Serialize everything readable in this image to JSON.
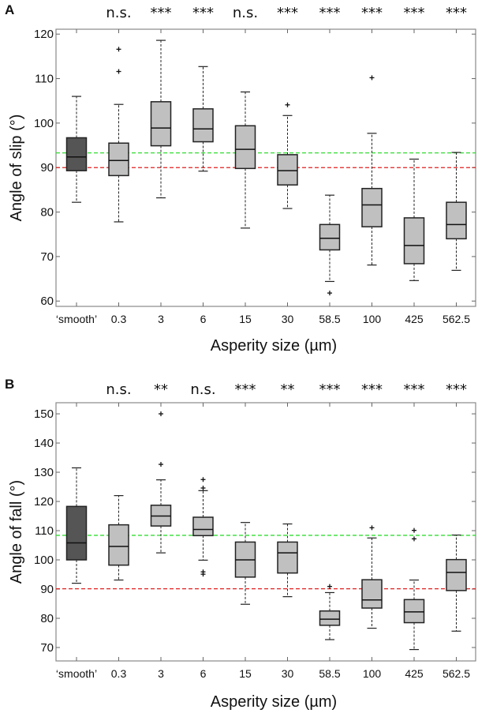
{
  "colors": {
    "smooth_box": "#555555",
    "box": "#c0c0c0",
    "edge": "#222222",
    "green_line": "#33dd33",
    "red_line": "#e02020",
    "frame": "#888888"
  },
  "chart_data": [
    {
      "type": "box",
      "panel_label": "A",
      "ylabel": "Angle of slip (°)",
      "xlabel": "Asperity size (µm)",
      "categories": [
        "‘smooth’",
        "0.3",
        "3",
        "6",
        "15",
        "30",
        "58.5",
        "100",
        "425",
        "562.5"
      ],
      "significance": [
        "",
        "n.s.",
        "***",
        "***",
        "n.s.",
        "***",
        "***",
        "***",
        "***",
        "***"
      ],
      "yticks": [
        60,
        70,
        80,
        90,
        100,
        110,
        120
      ],
      "ylim": [
        58.8,
        121.1
      ],
      "reference_lines": {
        "green": 93.3,
        "red": 90
      },
      "boxes": [
        {
          "whisker_low": 82.2,
          "q1": 89.3,
          "median": 92.4,
          "q3": 96.7,
          "whisker_high": 106.0,
          "outliers": []
        },
        {
          "whisker_low": 77.8,
          "q1": 88.2,
          "median": 91.6,
          "q3": 95.5,
          "whisker_high": 104.2,
          "outliers": [
            116.6,
            111.6
          ]
        },
        {
          "whisker_low": 83.2,
          "q1": 94.9,
          "median": 98.9,
          "q3": 104.8,
          "whisker_high": 118.6,
          "outliers": []
        },
        {
          "whisker_low": 89.2,
          "q1": 95.8,
          "median": 98.7,
          "q3": 103.2,
          "whisker_high": 112.7,
          "outliers": []
        },
        {
          "whisker_low": 76.4,
          "q1": 89.8,
          "median": 94.1,
          "q3": 99.4,
          "whisker_high": 107.0,
          "outliers": []
        },
        {
          "whisker_low": 80.8,
          "q1": 86.1,
          "median": 89.3,
          "q3": 92.9,
          "whisker_high": 101.7,
          "outliers": [
            104.1
          ]
        },
        {
          "whisker_low": 64.4,
          "q1": 71.5,
          "median": 74.1,
          "q3": 77.2,
          "whisker_high": 83.8,
          "outliers": [
            61.8
          ]
        },
        {
          "whisker_low": 68.1,
          "q1": 76.7,
          "median": 81.6,
          "q3": 85.3,
          "whisker_high": 97.7,
          "outliers": [
            110.2
          ]
        },
        {
          "whisker_low": 64.6,
          "q1": 68.4,
          "median": 72.5,
          "q3": 78.7,
          "whisker_high": 91.9,
          "outliers": []
        },
        {
          "whisker_low": 66.9,
          "q1": 74.0,
          "median": 77.2,
          "q3": 82.2,
          "whisker_high": 93.4,
          "outliers": []
        }
      ]
    },
    {
      "type": "box",
      "panel_label": "B",
      "ylabel": "Angle of fall (°)",
      "xlabel": "Asperity size (µm)",
      "categories": [
        "‘smooth’",
        "0.3",
        "3",
        "6",
        "15",
        "30",
        "58.5",
        "100",
        "425",
        "562.5"
      ],
      "significance": [
        "",
        "n.s.",
        "**",
        "n.s.",
        "***",
        "**",
        "***",
        "***",
        "***",
        "***"
      ],
      "yticks": [
        70,
        80,
        90,
        100,
        110,
        120,
        130,
        140,
        150
      ],
      "ylim": [
        65.4,
        153.8
      ],
      "reference_lines": {
        "green": 108.4,
        "red": 90.1
      },
      "boxes": [
        {
          "whisker_low": 92.0,
          "q1": 100.0,
          "median": 105.8,
          "q3": 118.3,
          "whisker_high": 131.5,
          "outliers": []
        },
        {
          "whisker_low": 93.1,
          "q1": 98.2,
          "median": 104.6,
          "q3": 112.0,
          "whisker_high": 122.0,
          "outliers": []
        },
        {
          "whisker_low": 102.4,
          "q1": 111.6,
          "median": 115.0,
          "q3": 118.7,
          "whisker_high": 127.4,
          "outliers": [
            150.0,
            132.7
          ]
        },
        {
          "whisker_low": 99.9,
          "q1": 108.3,
          "median": 110.4,
          "q3": 114.6,
          "whisker_high": 123.7,
          "outliers": [
            127.5,
            124.6,
            95.9,
            95.1
          ]
        },
        {
          "whisker_low": 84.8,
          "q1": 94.1,
          "median": 100.0,
          "q3": 106.1,
          "whisker_high": 112.8,
          "outliers": []
        },
        {
          "whisker_low": 87.4,
          "q1": 95.5,
          "median": 102.4,
          "q3": 106.1,
          "whisker_high": 112.3,
          "outliers": []
        },
        {
          "whisker_low": 72.7,
          "q1": 77.6,
          "median": 79.7,
          "q3": 82.5,
          "whisker_high": 88.8,
          "outliers": [
            90.9
          ]
        },
        {
          "whisker_low": 76.6,
          "q1": 83.5,
          "median": 86.3,
          "q3": 93.2,
          "whisker_high": 107.5,
          "outliers": [
            111.0
          ]
        },
        {
          "whisker_low": 69.3,
          "q1": 78.5,
          "median": 82.2,
          "q3": 86.4,
          "whisker_high": 93.1,
          "outliers": [
            110.1,
            107.2
          ]
        },
        {
          "whisker_low": 75.6,
          "q1": 89.5,
          "median": 95.7,
          "q3": 100.1,
          "whisker_high": 108.5,
          "outliers": []
        }
      ]
    }
  ]
}
